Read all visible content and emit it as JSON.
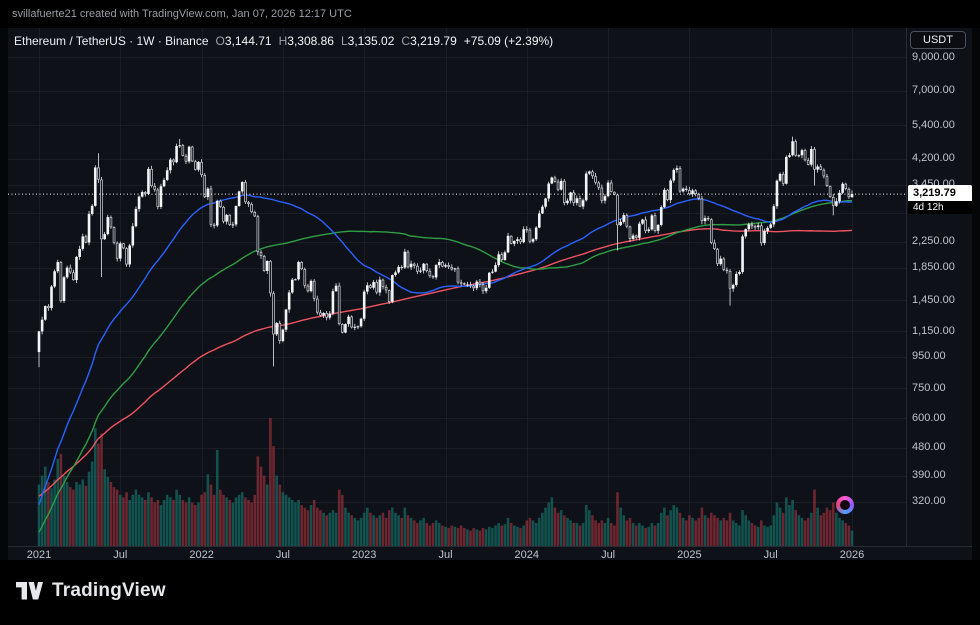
{
  "topbar": {
    "text": "svillafuerte21 created with TradingView.com, Jan 07, 2026 12:17 UTC"
  },
  "header": {
    "title": "Ethereum / TetherUS · 1W · Binance",
    "ohlc": [
      {
        "label": "O",
        "value": "3,144.71"
      },
      {
        "label": "H",
        "value": "3,308.86"
      },
      {
        "label": "L",
        "value": "3,135.02"
      },
      {
        "label": "C",
        "value": "3,219.79"
      }
    ],
    "change": "+75.09 (+2.39%)"
  },
  "price_scale": {
    "currency_button": "USDT",
    "labels": [
      "9,000.00",
      "7,000.00",
      "5,400.00",
      "4,200.00",
      "3,450.00",
      "2,250.00",
      "1,850.00",
      "1,450.00",
      "1,150.00",
      "950.00",
      "750.00",
      "600.00",
      "480.00",
      "390.00",
      "320.00"
    ],
    "values": [
      9000,
      7000,
      5400,
      4200,
      3450,
      2250,
      1850,
      1450,
      1150,
      950,
      750,
      600,
      480,
      390,
      320
    ],
    "grid_values": [
      9000,
      7000,
      5400,
      4200,
      3450,
      2800,
      2250,
      1850,
      1450,
      1150,
      950,
      750,
      600,
      480,
      390,
      320
    ],
    "last_price": "3,219.79",
    "last_price_value": 3219.79,
    "countdown": "4d 12h"
  },
  "time_scale": {
    "labels": [
      "2021",
      "Jul",
      "2022",
      "Jul",
      "2023",
      "Jul",
      "2024",
      "Jul",
      "2025",
      "Jul",
      "2026"
    ],
    "candle_indices": [
      0,
      26,
      52,
      78,
      104,
      130,
      156,
      182,
      208,
      234,
      260
    ]
  },
  "footer": {
    "brand": "TradingView"
  },
  "colors": {
    "page_bg": "#050607",
    "chart_bg": "#0e1118",
    "axis_text": "#bfc3ca",
    "grid": "rgba(125,135,155,0.10)",
    "last_price_line": "#ffffff"
  },
  "chart_data": {
    "type": "candlestick",
    "title": "Ethereum / TetherUS · 1W · Binance",
    "symbol": "ETH/USDT",
    "exchange": "Binance",
    "interval": "1W",
    "scale": "log",
    "y_domain": [
      230,
      11190
    ],
    "x_range": [
      "2021-01",
      "2026-01"
    ],
    "grid": true,
    "first_open": 985,
    "weekly_closes": [
      1150,
      1255,
      1390,
      1370,
      1610,
      1805,
      1935,
      1445,
      1725,
      1855,
      1790,
      1690,
      2010,
      2135,
      2345,
      2240,
      2775,
      2950,
      3930,
      3590,
      2295,
      2385,
      2710,
      2510,
      2235,
      1985,
      2225,
      2145,
      1900,
      2190,
      2530,
      2880,
      3160,
      3270,
      3225,
      3890,
      3420,
      3330,
      2925,
      3415,
      3580,
      3850,
      4170,
      4090,
      4620,
      4645,
      4290,
      4110,
      4595,
      4115,
      3865,
      4100,
      3715,
      3150,
      3355,
      2560,
      2545,
      3060,
      2925,
      2620,
      2755,
      2555,
      2565,
      2945,
      3285,
      3525,
      3030,
      2990,
      2815,
      2725,
      2085,
      2025,
      1810,
      1950,
      1530,
      1125,
      1225,
      1070,
      1165,
      1355,
      1540,
      1695,
      1700,
      1935,
      1835,
      1620,
      1555,
      1680,
      1470,
      1325,
      1295,
      1320,
      1275,
      1315,
      1555,
      1620,
      1215,
      1140,
      1215,
      1285,
      1185,
      1190,
      1195,
      1265,
      1550,
      1625,
      1595,
      1665,
      1540,
      1695,
      1605,
      1565,
      1435,
      1755,
      1790,
      1865,
      1855,
      2090,
      1860,
      1910,
      1880,
      1800,
      1815,
      1910,
      1810,
      1740,
      1725,
      1890,
      1935,
      1870,
      1890,
      1865,
      1830,
      1845,
      1660,
      1650,
      1635,
      1635,
      1620,
      1590,
      1670,
      1635,
      1555,
      1595,
      1785,
      1800,
      1890,
      2050,
      1965,
      2080,
      2355,
      2220,
      2265,
      2295,
      2245,
      2475,
      2465,
      2255,
      2295,
      2505,
      2785,
      2930,
      3115,
      3485,
      3645,
      3535,
      3330,
      3555,
      3010,
      3065,
      3260,
      3015,
      3120,
      2935,
      3075,
      3755,
      3815,
      3685,
      3510,
      3380,
      3065,
      3170,
      3510,
      3275,
      3205,
      2550,
      2615,
      2750,
      2525,
      2300,
      2360,
      2320,
      2580,
      2660,
      2440,
      2470,
      2745,
      2445,
      2555,
      2920,
      3325,
      3080,
      3565,
      3860,
      3910,
      3285,
      3355,
      3320,
      3220,
      3310,
      3225,
      3115,
      2630,
      2690,
      2665,
      2235,
      2135,
      1905,
      1985,
      1825,
      1810,
      1585,
      1630,
      1770,
      1795,
      2345,
      2475,
      2565,
      2530,
      2515,
      2545,
      2230,
      2440,
      2500,
      2565,
      2940,
      3560,
      3745,
      3480,
      4255,
      4310,
      4785,
      4300,
      4310,
      4475,
      4150,
      4015,
      4515,
      3870,
      3960,
      3865,
      3680,
      3420,
      3150,
      2950,
      3050,
      3250,
      3480,
      3350,
      3145,
      3219.79
    ],
    "volumes": [
      48,
      55,
      62,
      50,
      45,
      52,
      68,
      72,
      55,
      50,
      46,
      44,
      50,
      48,
      52,
      47,
      58,
      66,
      92,
      80,
      88,
      60,
      54,
      50,
      46,
      44,
      40,
      38,
      42,
      36,
      40,
      44,
      40,
      38,
      36,
      42,
      38,
      34,
      36,
      32,
      36,
      40,
      38,
      36,
      44,
      40,
      36,
      34,
      38,
      34,
      32,
      34,
      40,
      42,
      56,
      48,
      40,
      75,
      44,
      40,
      38,
      36,
      34,
      38,
      40,
      42,
      38,
      36,
      34,
      40,
      70,
      62,
      55,
      48,
      100,
      78,
      55,
      48,
      42,
      40,
      38,
      36,
      34,
      36,
      32,
      30,
      28,
      32,
      36,
      30,
      28,
      26,
      24,
      26,
      28,
      26,
      44,
      40,
      30,
      26,
      24,
      22,
      20,
      22,
      26,
      30,
      26,
      24,
      22,
      24,
      26,
      22,
      28,
      30,
      26,
      24,
      22,
      30,
      24,
      22,
      20,
      18,
      20,
      22,
      18,
      16,
      18,
      20,
      18,
      16,
      15,
      14,
      16,
      15,
      14,
      16,
      14,
      13,
      12,
      14,
      13,
      12,
      14,
      13,
      15,
      14,
      16,
      18,
      16,
      17,
      22,
      18,
      16,
      15,
      14,
      16,
      20,
      22,
      20,
      18,
      22,
      26,
      30,
      34,
      38,
      30,
      26,
      28,
      24,
      22,
      20,
      18,
      18,
      16,
      18,
      32,
      28,
      24,
      20,
      18,
      20,
      18,
      22,
      18,
      16,
      42,
      30,
      24,
      20,
      22,
      18,
      16,
      18,
      16,
      14,
      15,
      18,
      16,
      18,
      26,
      30,
      24,
      28,
      32,
      30,
      26,
      22,
      20,
      24,
      22,
      20,
      22,
      30,
      24,
      22,
      26,
      24,
      22,
      20,
      22,
      20,
      26,
      20,
      18,
      16,
      28,
      24,
      20,
      18,
      16,
      15,
      20,
      16,
      15,
      16,
      24,
      34,
      30,
      26,
      38,
      32,
      36,
      28,
      24,
      22,
      20,
      22,
      26,
      44,
      30,
      24,
      26,
      30,
      28,
      34,
      26,
      22,
      20,
      18,
      16,
      12
    ],
    "wick_overrides": {
      "0": {
        "low": 880
      },
      "19": {
        "high": 4375
      },
      "20": {
        "low": 1730
      },
      "45": {
        "high": 4870
      },
      "75": {
        "low": 885
      },
      "185": {
        "low": 2110
      },
      "221": {
        "low": 1395
      },
      "241": {
        "high": 4955
      },
      "248": {
        "low": 3435
      },
      "254": {
        "low": 2745
      }
    },
    "final_candle": {
      "open": 3144.71,
      "high": 3308.86,
      "low": 3135.02,
      "close": 3219.79
    },
    "sma_windows": {
      "fast": 50,
      "mid": 100,
      "slow": 200
    },
    "prehistory_anchors": [
      [
        0,
        10
      ],
      [
        8,
        50
      ],
      [
        16,
        90
      ],
      [
        22,
        340
      ],
      [
        26,
        300
      ],
      [
        34,
        300
      ],
      [
        44,
        470
      ],
      [
        48,
        750
      ],
      [
        52,
        1380
      ],
      [
        56,
        880
      ],
      [
        60,
        690
      ],
      [
        64,
        520
      ],
      [
        68,
        700
      ],
      [
        72,
        580
      ],
      [
        76,
        480
      ],
      [
        80,
        420
      ],
      [
        86,
        280
      ],
      [
        92,
        230
      ],
      [
        96,
        210
      ],
      [
        100,
        110
      ],
      [
        104,
        140
      ],
      [
        108,
        105
      ],
      [
        112,
        140
      ],
      [
        116,
        170
      ],
      [
        122,
        270
      ],
      [
        126,
        310
      ],
      [
        130,
        290
      ],
      [
        134,
        220
      ],
      [
        138,
        180
      ],
      [
        144,
        185
      ],
      [
        150,
        150
      ],
      [
        156,
        130
      ],
      [
        160,
        170
      ],
      [
        162,
        260
      ],
      [
        166,
        110
      ],
      [
        170,
        170
      ],
      [
        176,
        200
      ],
      [
        182,
        240
      ],
      [
        186,
        230
      ],
      [
        190,
        390
      ],
      [
        194,
        365
      ],
      [
        198,
        380
      ],
      [
        202,
        450
      ],
      [
        205,
        600
      ],
      [
        207,
        735
      ]
    ],
    "colors": {
      "up": "#f4f5f7",
      "down_fill": "#0d1118",
      "down_border": "#d6d8dd",
      "wick": "#e6e7ea",
      "volume_up": "rgba(22,137,123,0.55)",
      "volume_down": "rgba(204,60,70,0.50)",
      "ma_fast": "#2962ff",
      "ma_mid": "#2f9e44",
      "ma_slow": "#ef5360"
    }
  }
}
